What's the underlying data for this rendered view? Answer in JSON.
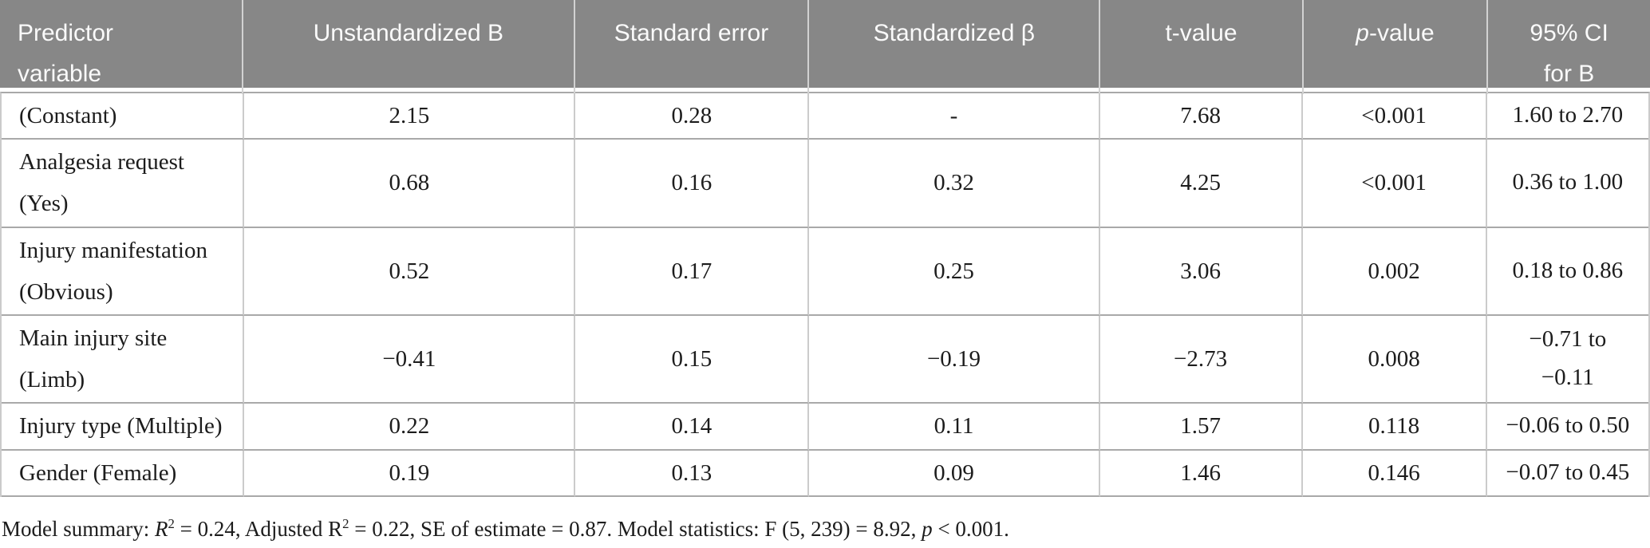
{
  "header": {
    "col1": [
      "Predictor",
      "variable"
    ],
    "col2": "Unstandardized B",
    "col3": "Standard error",
    "col4": "Standardized β",
    "col5": "t-value",
    "col6_italic": "p",
    "col6_rest": "-value",
    "col7": [
      "95% CI",
      "for B"
    ]
  },
  "rows": [
    {
      "cells": [
        [
          "(Constant)"
        ],
        [
          "2.15"
        ],
        [
          "0.28"
        ],
        [
          "-"
        ],
        [
          "7.68"
        ],
        [
          "<0.001"
        ],
        [
          "1.60 to 2.70"
        ]
      ]
    },
    {
      "cells": [
        [
          "Analgesia request",
          "(Yes)"
        ],
        [
          "0.68"
        ],
        [
          "0.16"
        ],
        [
          "0.32"
        ],
        [
          "4.25"
        ],
        [
          "<0.001"
        ],
        [
          "0.36 to 1.00"
        ]
      ]
    },
    {
      "cells": [
        [
          "Injury manifestation",
          "(Obvious)"
        ],
        [
          "0.52"
        ],
        [
          "0.17"
        ],
        [
          "0.25"
        ],
        [
          "3.06"
        ],
        [
          "0.002"
        ],
        [
          "0.18 to 0.86"
        ]
      ]
    },
    {
      "cells": [
        [
          "Main injury site",
          "(Limb)"
        ],
        [
          "−0.41"
        ],
        [
          "0.15"
        ],
        [
          "−0.19"
        ],
        [
          "−2.73"
        ],
        [
          "0.008"
        ],
        [
          "−0.71 to",
          "−0.11"
        ]
      ]
    },
    {
      "cells": [
        [
          "Injury type (Multiple)"
        ],
        [
          "0.22"
        ],
        [
          "0.14"
        ],
        [
          "0.11"
        ],
        [
          "1.57"
        ],
        [
          "0.118"
        ],
        [
          "−0.06 to 0.50"
        ]
      ]
    },
    {
      "cells": [
        [
          "Gender (Female)"
        ],
        [
          "0.19"
        ],
        [
          "0.13"
        ],
        [
          "0.09"
        ],
        [
          "1.46"
        ],
        [
          "0.146"
        ],
        [
          "−0.07 to 0.45"
        ]
      ]
    }
  ],
  "footnote": {
    "part1": "Model summary: ",
    "r_italic": "R",
    "sup1": "2",
    "part2": " = 0.24, Adjusted R",
    "sup2": "2",
    "part3": " = 0.22, SE of estimate = 0.87. Model statistics: F (5, 239) = 8.92, ",
    "p_italic": "p",
    "part4": " < 0.001."
  },
  "colors": {
    "header_bg": "#878787",
    "header_text": "#fafafa",
    "header_divider": "#d2d2d2",
    "grid_vertical": "#cbcbcb",
    "grid_horizontal": "#a9a9a9",
    "body_text": "#1c1c1c",
    "page_bg": "#ffffff"
  }
}
